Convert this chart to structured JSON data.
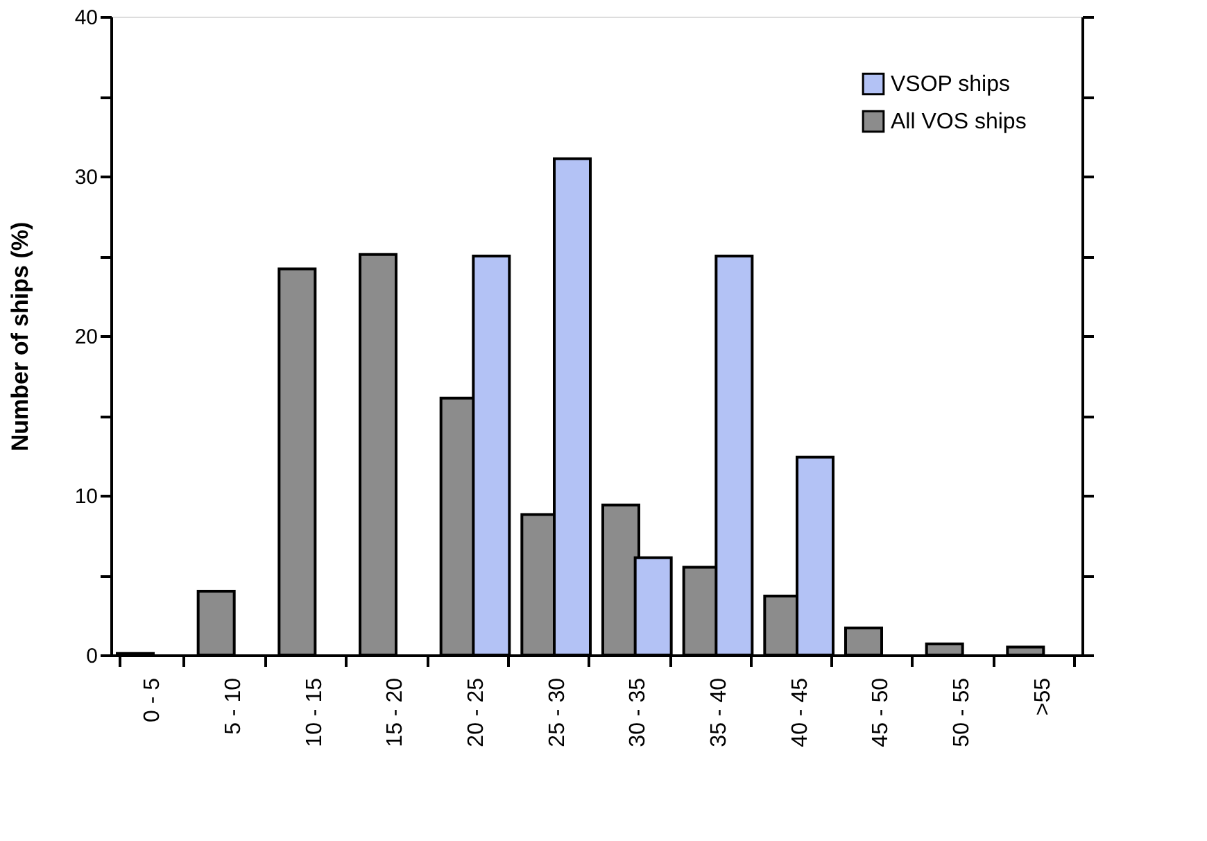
{
  "chart_data": {
    "type": "bar",
    "ylabel": "Number of ships (%)",
    "categories": [
      "0 - 5",
      "5 - 10",
      "10 - 15",
      "15 - 20",
      "20 - 25",
      "25 - 30",
      "30 - 35",
      "35 - 40",
      "40 - 45",
      "45 - 50",
      "50 - 55",
      ">55"
    ],
    "series": [
      {
        "name": "All VOS ships",
        "color": "#8c8c8c",
        "values": [
          0.1,
          4.0,
          24.2,
          25.1,
          16.1,
          8.8,
          9.4,
          5.5,
          3.7,
          1.7,
          0.7,
          0.5
        ]
      },
      {
        "name": "VSOP ships",
        "color": "#b3c2f5",
        "values": [
          null,
          null,
          null,
          null,
          25.0,
          31.1,
          6.1,
          25.0,
          12.4,
          null,
          null,
          null
        ]
      }
    ],
    "ylim": [
      0,
      40
    ],
    "yticks": [
      0,
      {
        "value": 5,
        "label": null
      },
      10,
      {
        "value": 15,
        "label": null
      },
      20,
      {
        "value": 25,
        "label": null
      },
      30,
      {
        "value": 35,
        "label": null
      },
      40
    ],
    "legend": "top right",
    "grid": false
  }
}
